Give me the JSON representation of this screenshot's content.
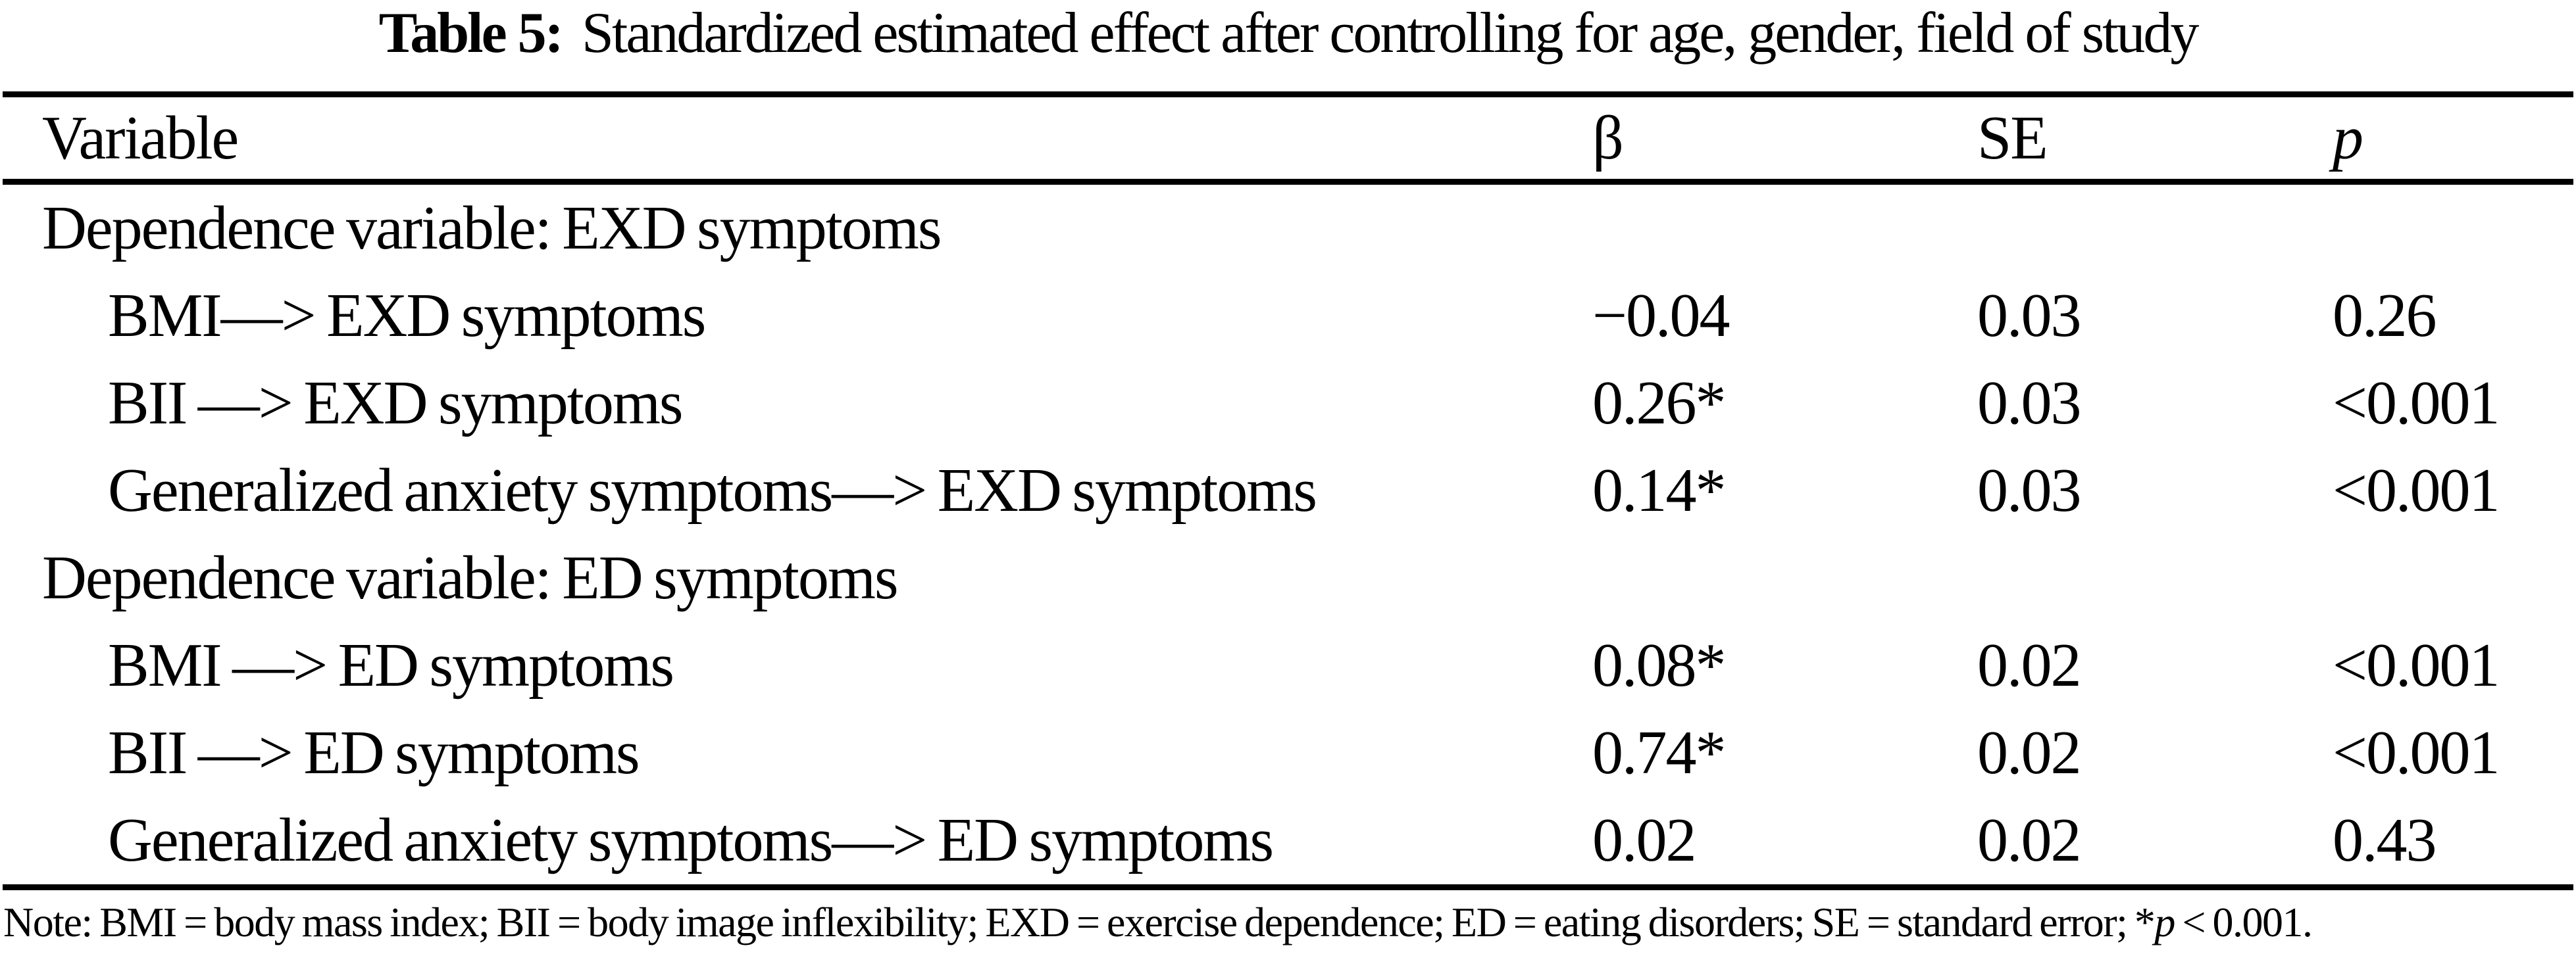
{
  "page": {
    "background_color": "#ffffff",
    "text_color": "#000000"
  },
  "title": {
    "label": "Table 5:",
    "text": "Standardized estimated effect after controlling for age, gender, field of study"
  },
  "table": {
    "columns": {
      "variable": "Variable",
      "beta": "β",
      "se": "SE",
      "p": "p"
    },
    "rows": [
      {
        "variable": "Dependence variable: EXD symptoms"
      },
      {
        "variable": "BMI—> EXD symptoms",
        "beta": "−0.04",
        "se": "0.03",
        "p": "0.26"
      },
      {
        "variable": "BII —> EXD symptoms",
        "beta": "0.26*",
        "se": "0.03",
        "p": "<0.001"
      },
      {
        "variable": "Generalized anxiety symptoms—> EXD symptoms",
        "beta": "0.14*",
        "se": "0.03",
        "p": "<0.001"
      },
      {
        "variable": "Dependence variable: ED symptoms"
      },
      {
        "variable": "BMI —> ED symptoms",
        "beta": "0.08*",
        "se": "0.02",
        "p": "<0.001"
      },
      {
        "variable": "BII —> ED symptoms",
        "beta": "0.74*",
        "se": "0.02",
        "p": "<0.001"
      },
      {
        "variable": "Generalized anxiety symptoms—> ED symptoms",
        "beta": "0.02",
        "se": "0.02",
        "p": "0.43"
      }
    ]
  },
  "note": {
    "prefix": "Note: BMI = body mass index; BII = body image inflexibility; EXD = exercise dependence; ED = eating disorders; SE = standard error; *",
    "p_italic": "p",
    "suffix": " < 0.001."
  }
}
